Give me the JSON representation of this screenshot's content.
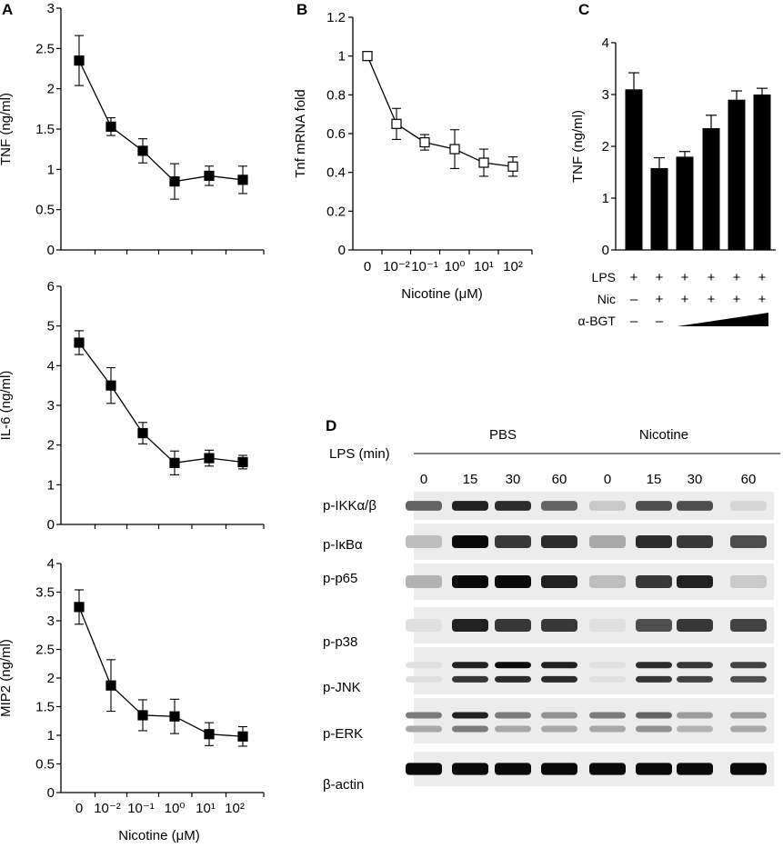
{
  "panel_labels": {
    "a": "A",
    "b": "B",
    "c": "C",
    "d": "D"
  },
  "colors": {
    "ink": "#000000",
    "open_marker": "#ffffff",
    "blot_background": "#ececec"
  },
  "chart_data": [
    {
      "id": "A-TNF",
      "type": "line",
      "panel": "A",
      "ylabel": "TNF (ng/ml)",
      "ylim": [
        0,
        3
      ],
      "yticks": [
        "0",
        "0.5",
        "1",
        "1.5",
        "2",
        "2.5",
        "3"
      ],
      "marker": "filled-square",
      "series": [
        {
          "values": [
            2.35,
            1.53,
            1.23,
            0.85,
            0.92,
            0.87
          ],
          "errors": [
            0.31,
            0.11,
            0.15,
            0.22,
            0.12,
            0.17
          ]
        }
      ]
    },
    {
      "id": "A-IL6",
      "type": "line",
      "panel": "A",
      "ylabel": "IL-6 (ng/ml)",
      "ylim": [
        0,
        6
      ],
      "yticks": [
        "0",
        "1",
        "2",
        "3",
        "4",
        "5",
        "6"
      ],
      "marker": "filled-square",
      "series": [
        {
          "values": [
            4.58,
            3.5,
            2.3,
            1.55,
            1.67,
            1.57
          ],
          "errors": [
            0.3,
            0.45,
            0.27,
            0.3,
            0.2,
            0.17
          ]
        }
      ]
    },
    {
      "id": "A-MIP2",
      "type": "line",
      "panel": "A",
      "ylabel": "MIP2 (ng/ml)",
      "ylim": [
        0,
        4
      ],
      "yticks": [
        "0",
        "0.5",
        "1",
        "1.5",
        "2",
        "2.5",
        "3",
        "3.5",
        "4"
      ],
      "xlabel": "Nicotine (μM)",
      "xticks": [
        "0",
        "10⁻²",
        "10⁻¹",
        "10⁰",
        "10¹",
        "10²"
      ],
      "marker": "filled-square",
      "series": [
        {
          "values": [
            3.24,
            1.87,
            1.35,
            1.33,
            1.02,
            0.98
          ],
          "errors": [
            0.3,
            0.45,
            0.27,
            0.3,
            0.2,
            0.17
          ]
        }
      ]
    },
    {
      "id": "B-mRNA",
      "type": "line",
      "panel": "B",
      "ylabel": "Tnf mRNA fold",
      "ylim": [
        0,
        1.2
      ],
      "yticks": [
        "0",
        "0.2",
        "0.4",
        "0.6",
        "0.8",
        "1",
        "1.2"
      ],
      "xlabel": "Nicotine (μM)",
      "xticks": [
        "0",
        "10⁻²",
        "10⁻¹",
        "10⁰",
        "10¹",
        "10²"
      ],
      "marker": "open-square",
      "series": [
        {
          "values": [
            1.0,
            0.65,
            0.555,
            0.52,
            0.45,
            0.43
          ],
          "errors": [
            0.0,
            0.08,
            0.04,
            0.1,
            0.07,
            0.05
          ]
        }
      ]
    },
    {
      "id": "C-TNF",
      "type": "bar",
      "panel": "C",
      "ylabel": "TNF (ng/ml)",
      "ylim": [
        0,
        4
      ],
      "yticks": [
        "0",
        "1",
        "2",
        "3",
        "4"
      ],
      "series": [
        {
          "values": [
            3.1,
            1.58,
            1.8,
            2.35,
            2.9,
            3.0
          ],
          "errors": [
            0.32,
            0.2,
            0.1,
            0.25,
            0.17,
            0.12
          ]
        }
      ],
      "conditions": [
        {
          "label": "LPS",
          "marks": [
            "+",
            "+",
            "+",
            "+",
            "+",
            "+"
          ]
        },
        {
          "label": "Nic",
          "marks": [
            "–",
            "+",
            "+",
            "+",
            "+",
            "+"
          ]
        },
        {
          "label": "α-BGT",
          "marks": [
            "–",
            "–"
          ]
        }
      ]
    }
  ],
  "blot": {
    "header_label": "LPS (min)",
    "groups": [
      "PBS",
      "Nicotine"
    ],
    "times": [
      "0",
      "15",
      "30",
      "60",
      "0",
      "15",
      "30",
      "60"
    ],
    "rows": [
      {
        "label": "p-IKKα/β"
      },
      {
        "label": "p-IκBα"
      },
      {
        "label": "p-p65"
      },
      {
        "label": "p-p38"
      },
      {
        "label": "p-JNK"
      },
      {
        "label": "p-ERK"
      },
      {
        "label": "β-actin"
      }
    ]
  }
}
